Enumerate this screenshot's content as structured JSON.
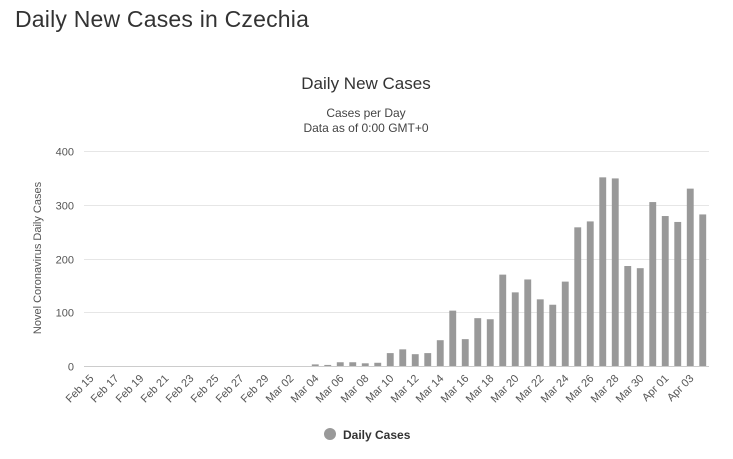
{
  "page": {
    "heading": "Daily New Cases in Czechia"
  },
  "colors": {
    "bar": "#999999",
    "grid": "#e6e6e6",
    "axis": "#cccccc"
  },
  "chart_data": {
    "type": "bar",
    "title": "Daily New Cases",
    "subtitle_lines": [
      "Cases per Day",
      "Data as of 0:00 GMT+0"
    ],
    "ylabel": "Novel Coronavirus Daily Cases",
    "xlabel": "",
    "ylim": [
      0,
      400
    ],
    "yticks": [
      0,
      100,
      200,
      300,
      400
    ],
    "grid": true,
    "legend_position": "bottom-center",
    "categories": [
      "Feb 15",
      "Feb 16",
      "Feb 17",
      "Feb 18",
      "Feb 19",
      "Feb 20",
      "Feb 21",
      "Feb 22",
      "Feb 23",
      "Feb 24",
      "Feb 25",
      "Feb 26",
      "Feb 27",
      "Feb 28",
      "Feb 29",
      "Mar 01",
      "Mar 02",
      "Mar 03",
      "Mar 04",
      "Mar 05",
      "Mar 06",
      "Mar 07",
      "Mar 08",
      "Mar 09",
      "Mar 10",
      "Mar 11",
      "Mar 12",
      "Mar 13",
      "Mar 14",
      "Mar 15",
      "Mar 16",
      "Mar 17",
      "Mar 18",
      "Mar 19",
      "Mar 20",
      "Mar 21",
      "Mar 22",
      "Mar 23",
      "Mar 24",
      "Mar 25",
      "Mar 26",
      "Mar 27",
      "Mar 28",
      "Mar 29",
      "Mar 30",
      "Mar 31",
      "Apr 01",
      "Apr 02",
      "Apr 03",
      "Apr 04"
    ],
    "xtick_labels": [
      "Feb 15",
      "Feb 17",
      "Feb 19",
      "Feb 21",
      "Feb 23",
      "Feb 25",
      "Feb 27",
      "Feb 29",
      "Mar 02",
      "Mar 04",
      "Mar 06",
      "Mar 08",
      "Mar 10",
      "Mar 12",
      "Mar 14",
      "Mar 16",
      "Mar 18",
      "Mar 20",
      "Mar 22",
      "Mar 24",
      "Mar 26",
      "Mar 28",
      "Mar 30",
      "Apr 01",
      "Apr 03"
    ],
    "series": [
      {
        "name": "Daily Cases",
        "values": [
          0,
          0,
          0,
          0,
          0,
          0,
          0,
          0,
          0,
          0,
          0,
          0,
          0,
          0,
          0,
          0,
          0,
          0,
          3,
          2,
          7,
          7,
          5,
          6,
          24,
          31,
          22,
          24,
          48,
          103,
          50,
          89,
          87,
          170,
          137,
          161,
          124,
          114,
          157,
          258,
          269,
          351,
          349,
          186,
          182,
          305,
          279,
          268,
          330,
          282
        ]
      }
    ]
  }
}
